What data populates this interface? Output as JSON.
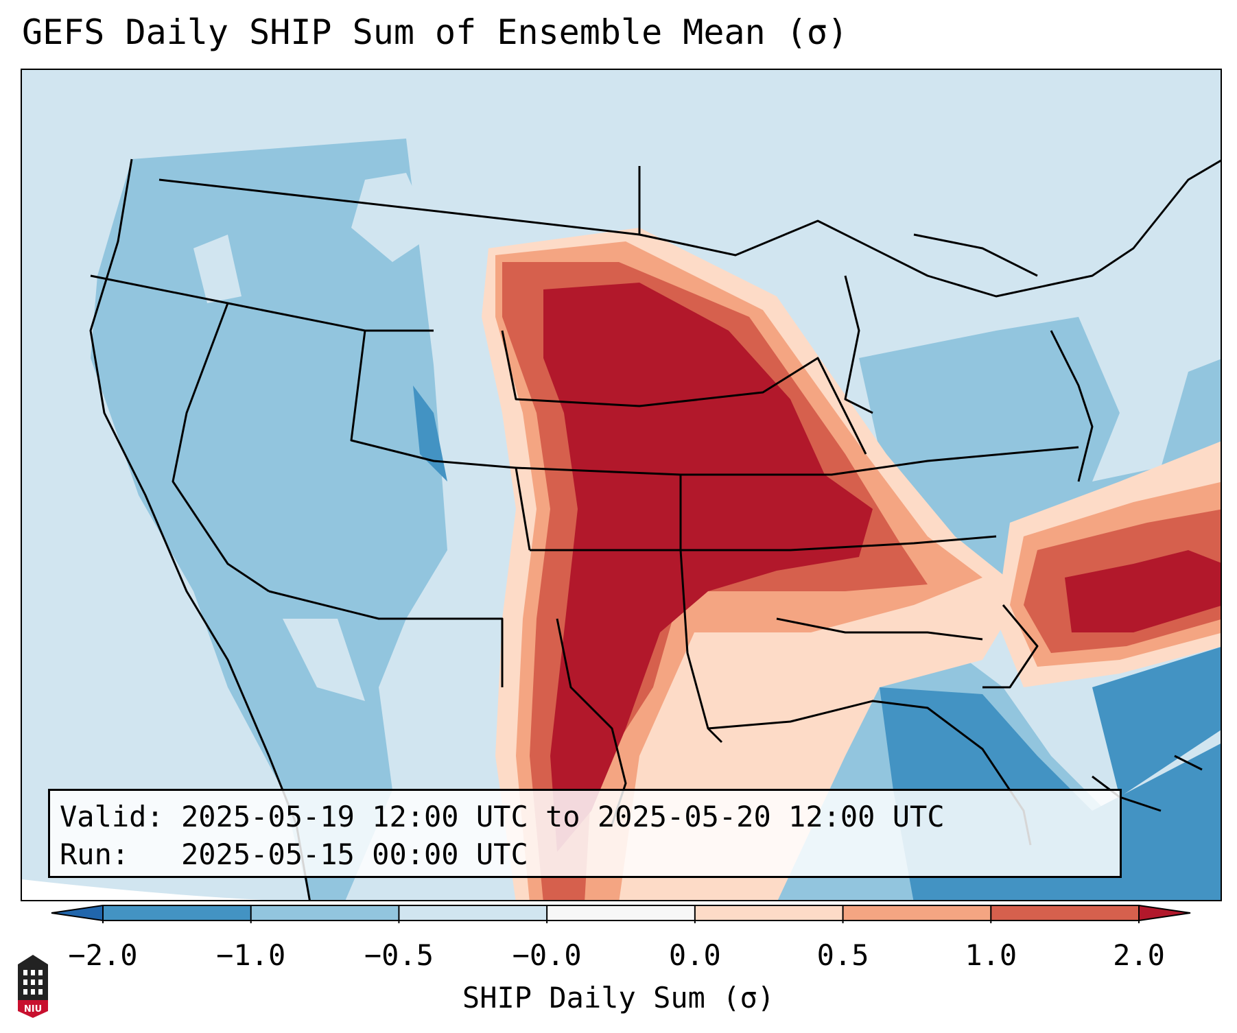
{
  "title": "GEFS Daily SHIP Sum of Ensemble Mean (σ)",
  "info": {
    "valid_label": "Valid:",
    "valid_value": "2025-05-19 12:00 UTC to 2025-05-20 12:00 UTC",
    "run_label": "Run:",
    "run_value": "2025-05-15 00:00 UTC"
  },
  "colorbar": {
    "label": "SHIP Daily Sum (σ)",
    "ticks": [
      "−2.0",
      "−1.0",
      "−0.5",
      "−0.0",
      "0.0",
      "0.5",
      "1.0",
      "2.0"
    ],
    "colors": [
      "#4393c3",
      "#92c5de",
      "#d1e5f0",
      "#f7f7f7",
      "#fddbc7",
      "#f4a582",
      "#d6604d"
    ],
    "under_color": "#2166ac",
    "over_color": "#b2182b"
  },
  "legend_colors": {
    "background": "#d1e5f0",
    "strong_negative": "#4393c3",
    "negative": "#92c5de",
    "neutral_pos": "#fddbc7",
    "pos": "#f4a582",
    "strong_pos": "#d6604d",
    "max_pos": "#b2182b"
  },
  "logo": {
    "text": "NIU",
    "icon": "niu-tower-icon"
  }
}
